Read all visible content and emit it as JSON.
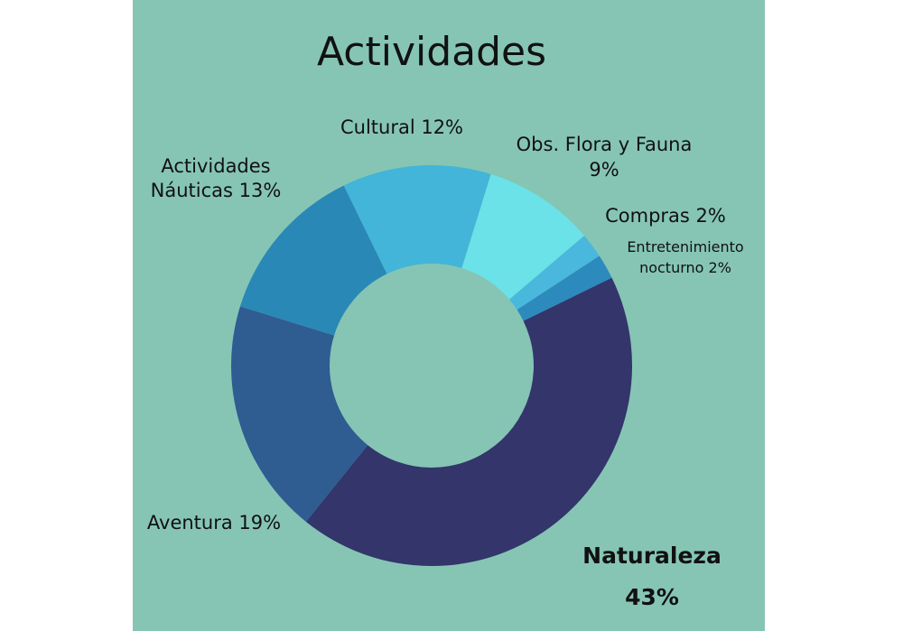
{
  "chart_data": {
    "type": "pie",
    "title": "Actividades",
    "series": [
      {
        "values": [
          {
            "category": "Naturaleza",
            "value": 43,
            "label_lines": [
              "Naturaleza",
              "43%"
            ],
            "color": "#33356b"
          },
          {
            "category": "Aventura",
            "value": 19,
            "label_lines": [
              "Aventura 19%"
            ],
            "color": "#2f5c91"
          },
          {
            "category": "Actividades Náuticas",
            "value": 13,
            "label_lines": [
              "Actividades",
              "Náuticas 13%"
            ],
            "color": "#2a88b6"
          },
          {
            "category": "Cultural",
            "value": 12,
            "label_lines": [
              "Cultural 12%"
            ],
            "color": "#42b5d9"
          },
          {
            "category": "Obs. Flora y Fauna",
            "value": 9,
            "label_lines": [
              "Obs. Flora y Fauna",
              "9%"
            ],
            "color": "#6be1e8"
          },
          {
            "category": "Compras",
            "value": 2,
            "label_lines": [
              "Compras 2%"
            ],
            "color": "#49b8dc"
          },
          {
            "category": "Entretenimiento nocturno",
            "value": 2,
            "label_lines": [
              "Entretenimiento",
              "nocturno 2%"
            ],
            "color": "#2c8abd"
          }
        ]
      }
    ],
    "background_color": "#86c5b4",
    "donut": true
  }
}
